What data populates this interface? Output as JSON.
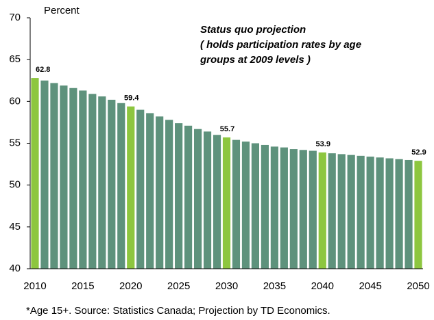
{
  "chart_data": {
    "type": "bar",
    "y_label": "Percent",
    "annotation": [
      "Status quo projection",
      "( holds participation rates by age",
      "groups at 2009 levels )"
    ],
    "footnote": "*Age 15+. Source: Statistics Canada; Projection by TD Economics.",
    "x": [
      2010,
      2011,
      2012,
      2013,
      2014,
      2015,
      2016,
      2017,
      2018,
      2019,
      2020,
      2021,
      2022,
      2023,
      2024,
      2025,
      2026,
      2027,
      2028,
      2029,
      2030,
      2031,
      2032,
      2033,
      2034,
      2035,
      2036,
      2037,
      2038,
      2039,
      2040,
      2041,
      2042,
      2043,
      2044,
      2045,
      2046,
      2047,
      2048,
      2049,
      2050
    ],
    "values": [
      62.8,
      62.5,
      62.2,
      61.9,
      61.6,
      61.3,
      60.9,
      60.6,
      60.2,
      59.8,
      59.4,
      59.0,
      58.6,
      58.2,
      57.8,
      57.4,
      57.1,
      56.7,
      56.4,
      56.0,
      55.7,
      55.4,
      55.2,
      55.0,
      54.8,
      54.6,
      54.5,
      54.3,
      54.2,
      54.1,
      53.9,
      53.8,
      53.7,
      53.6,
      53.5,
      53.4,
      53.3,
      53.2,
      53.1,
      53.0,
      52.9
    ],
    "value_labels": [
      "62.8",
      null,
      null,
      null,
      null,
      null,
      null,
      null,
      null,
      null,
      "59.4",
      null,
      null,
      null,
      null,
      null,
      null,
      null,
      null,
      null,
      "55.7",
      null,
      null,
      null,
      null,
      null,
      null,
      null,
      null,
      null,
      "53.9",
      null,
      null,
      null,
      null,
      null,
      null,
      null,
      null,
      null,
      "52.9"
    ],
    "colors": [
      "#8dc63f",
      "#5e927c",
      "#5e927c",
      "#5e927c",
      "#5e927c",
      "#5e927c",
      "#5e927c",
      "#5e927c",
      "#5e927c",
      "#5e927c",
      "#8dc63f",
      "#5e927c",
      "#5e927c",
      "#5e927c",
      "#5e927c",
      "#5e927c",
      "#5e927c",
      "#5e927c",
      "#5e927c",
      "#5e927c",
      "#8dc63f",
      "#5e927c",
      "#5e927c",
      "#5e927c",
      "#5e927c",
      "#5e927c",
      "#5e927c",
      "#5e927c",
      "#5e927c",
      "#5e927c",
      "#8dc63f",
      "#5e927c",
      "#5e927c",
      "#5e927c",
      "#5e927c",
      "#5e927c",
      "#5e927c",
      "#5e927c",
      "#5e927c",
      "#5e927c",
      "#8dc63f"
    ],
    "xlim": [
      2009.5,
      2050.5
    ],
    "xticks": [
      2010,
      2015,
      2020,
      2025,
      2030,
      2035,
      2040,
      2045,
      2050
    ],
    "ylim": [
      40,
      70
    ],
    "yticks": [
      40,
      45,
      50,
      55,
      60,
      65,
      70
    ],
    "grid": false
  }
}
